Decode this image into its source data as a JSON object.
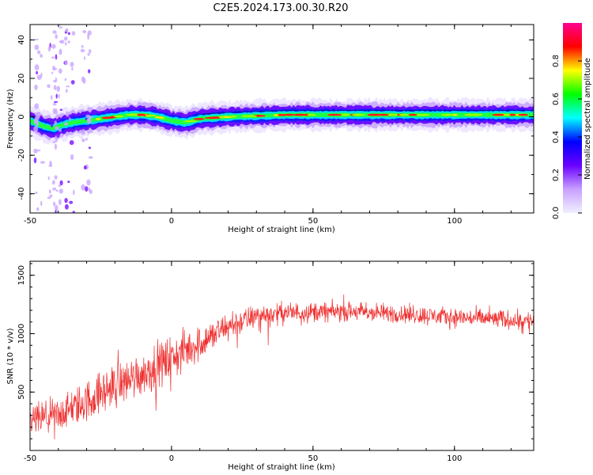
{
  "title": "C2E5.2024.173.00.30.R20",
  "colors": {
    "snr_line": "#ef3030",
    "frame": "#000000"
  },
  "chart_data": [
    {
      "type": "heatmap",
      "xlabel": "Height of straight line (km)",
      "ylabel": "Frequency (Hz)",
      "xlim": [
        -50,
        128
      ],
      "ylim": [
        -50,
        48
      ],
      "xticks": [
        -50,
        0,
        50,
        100
      ],
      "yticks": [
        -40,
        -20,
        0,
        20,
        40
      ],
      "colorbar": {
        "label": "Normalized spectral amplitude",
        "range": [
          0.0,
          1.0
        ],
        "ticks": [
          "0.0",
          "0.2",
          "0.4",
          "0.6",
          "0.8"
        ],
        "colormap": [
          "#f0f0ff",
          "#c8a0ff",
          "#6a00ff",
          "#0000ff",
          "#00ffff",
          "#00ff00",
          "#ffff00",
          "#ff0000",
          "#ff0090"
        ]
      },
      "ridge": {
        "description_values": "dominant frequency vs height",
        "x": [
          -50,
          -45,
          -42,
          -38,
          -35,
          -30,
          -25,
          -20,
          -15,
          -10,
          -5,
          0,
          5,
          10,
          20,
          40,
          60,
          80,
          100,
          128
        ],
        "y": [
          -2,
          -5,
          -6,
          -4,
          -3,
          -2,
          -1,
          0,
          1,
          1,
          0,
          -2,
          -3,
          -1,
          0,
          1,
          1,
          1,
          1,
          1
        ]
      }
    },
    {
      "type": "line",
      "xlabel": "Height of straight line (km)",
      "ylabel": "SNR (10 * v/v)",
      "xlim": [
        -50,
        128
      ],
      "ylim": [
        0,
        1620
      ],
      "xticks": [
        -50,
        0,
        50,
        100
      ],
      "yticks": [
        500,
        1000,
        1500
      ],
      "envelope": {
        "x": [
          -50,
          -40,
          -30,
          -20,
          -10,
          0,
          10,
          20,
          30,
          40,
          60,
          80,
          100,
          128
        ],
        "mean": [
          250,
          300,
          420,
          560,
          660,
          790,
          920,
          1060,
          1150,
          1180,
          1190,
          1170,
          1140,
          1110
        ],
        "spread": [
          200,
          220,
          260,
          280,
          280,
          280,
          230,
          180,
          150,
          130,
          120,
          120,
          120,
          120
        ]
      }
    }
  ]
}
